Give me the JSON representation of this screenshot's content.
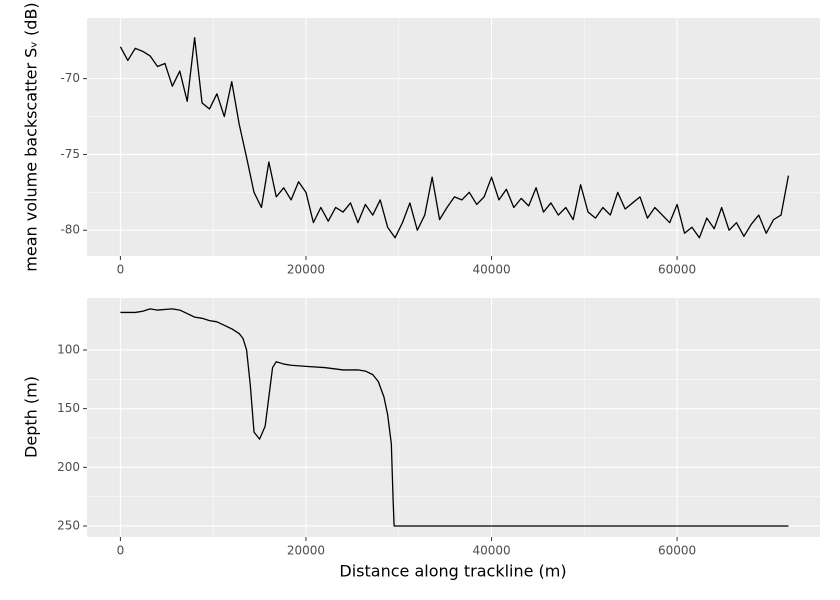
{
  "chart_data": [
    {
      "type": "line",
      "ylabel": "mean volume backscatter Sᵥ (dB)",
      "color": "#000000",
      "grid": true,
      "xlim": [
        -3600,
        75400
      ],
      "xticks": [
        0,
        20000,
        40000,
        60000
      ],
      "ylim": [
        -81.7,
        -66.0
      ],
      "yticks": [
        -80,
        -75,
        -70
      ],
      "x": [
        0,
        800,
        1600,
        2400,
        3200,
        4000,
        4800,
        5600,
        6400,
        7200,
        8000,
        8800,
        9600,
        10400,
        11200,
        12000,
        12800,
        13600,
        14400,
        15200,
        16000,
        16800,
        17600,
        18400,
        19200,
        20000,
        20800,
        21600,
        22400,
        23200,
        24000,
        24800,
        25600,
        26400,
        27200,
        28000,
        28800,
        29600,
        30400,
        31200,
        32000,
        32800,
        33600,
        34400,
        35200,
        36000,
        36800,
        37600,
        38400,
        39200,
        40000,
        40800,
        41600,
        42400,
        43200,
        44000,
        44800,
        45600,
        46400,
        47200,
        48000,
        48800,
        49600,
        50400,
        51200,
        52000,
        52800,
        53600,
        54400,
        55200,
        56000,
        56800,
        57600,
        58400,
        59200,
        60000,
        60800,
        61600,
        62400,
        63200,
        64000,
        64800,
        65600,
        66400,
        67200,
        68000,
        68800,
        69600,
        70400,
        71200,
        72000
      ],
      "values": [
        -67.9,
        -68.8,
        -68.0,
        -68.2,
        -68.5,
        -69.2,
        -69.0,
        -70.5,
        -69.5,
        -71.5,
        -67.3,
        -71.6,
        -72.0,
        -71.0,
        -72.5,
        -70.2,
        -73.0,
        -75.2,
        -77.5,
        -78.5,
        -75.5,
        -77.8,
        -77.2,
        -78.0,
        -76.8,
        -77.5,
        -79.5,
        -78.5,
        -79.4,
        -78.5,
        -78.8,
        -78.2,
        -79.5,
        -78.3,
        -79.0,
        -78.0,
        -79.8,
        -80.5,
        -79.5,
        -78.2,
        -80.0,
        -79.0,
        -76.5,
        -79.3,
        -78.5,
        -77.8,
        -78.0,
        -77.5,
        -78.3,
        -77.8,
        -76.5,
        -78.0,
        -77.3,
        -78.5,
        -77.9,
        -78.4,
        -77.2,
        -78.8,
        -78.2,
        -79.0,
        -78.5,
        -79.3,
        -77.0,
        -78.8,
        -79.2,
        -78.5,
        -79.0,
        -77.5,
        -78.6,
        -78.2,
        -77.8,
        -79.2,
        -78.5,
        -79.0,
        -79.5,
        -78.3,
        -80.2,
        -79.8,
        -80.5,
        -79.2,
        -79.9,
        -78.5,
        -80.0,
        -79.5,
        -80.4,
        -79.6,
        -79.0,
        -80.2,
        -79.3,
        -79.0,
        -76.4
      ]
    },
    {
      "type": "line",
      "ylabel": "Depth (m)",
      "xlabel": "Distance along trackline (m)",
      "color": "#000000",
      "grid": true,
      "xlim": [
        -3600,
        75400
      ],
      "xticks": [
        0,
        20000,
        40000,
        60000
      ],
      "ylim": [
        259.4,
        55.7
      ],
      "yticks": [
        100,
        150,
        200,
        250
      ],
      "x": [
        0,
        1600,
        2400,
        3200,
        4000,
        5600,
        6400,
        7200,
        8000,
        8800,
        9600,
        10400,
        11200,
        12000,
        12800,
        13200,
        13600,
        14000,
        14400,
        15000,
        15600,
        16000,
        16400,
        16800,
        17600,
        18400,
        20000,
        22000,
        24000,
        25600,
        26400,
        27200,
        27800,
        28400,
        28800,
        29200,
        29400,
        29500,
        72000
      ],
      "values": [
        68,
        68,
        67,
        65,
        66,
        65,
        66,
        69,
        72,
        73,
        75,
        76,
        79,
        82,
        86,
        90,
        100,
        130,
        170,
        176,
        165,
        140,
        115,
        110,
        112,
        113,
        114,
        115,
        117,
        117,
        118,
        121,
        127,
        140,
        155,
        180,
        230,
        250,
        250
      ]
    }
  ]
}
